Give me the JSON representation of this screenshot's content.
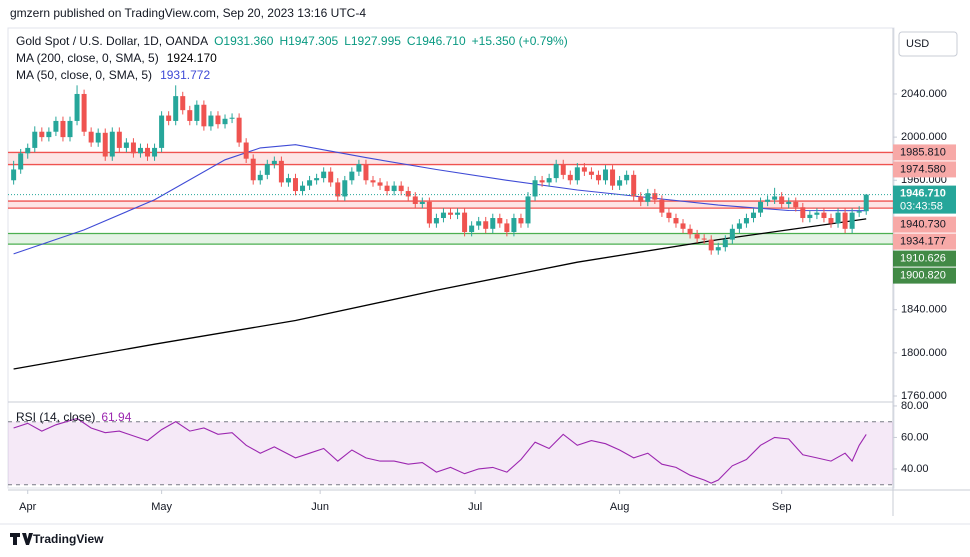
{
  "header": {
    "publisher": "gmzern published on TradingView.com, Sep 20, 2023 13:16 UTC-4"
  },
  "legend": {
    "symbol": "Gold Spot / U.S. Dollar, 1D, OANDA",
    "ohlc": [
      "O1931.360",
      "H1947.305",
      "L1927.995",
      "C1946.710"
    ],
    "change": "+15.350 (+0.79%)",
    "ma200": {
      "name": "MA (200, close, 0, SMA, 5)",
      "value": "1924.170"
    },
    "ma50": {
      "name": "MA (50, close, 0, SMA, 5)",
      "value": "1931.772"
    },
    "rsi": {
      "name": "RSI (14, close)",
      "value": "61.94"
    }
  },
  "currency": "USD",
  "footer": "TradingView",
  "chart_data": {
    "type": "candlestick",
    "up_color": "#26a69a",
    "down_color": "#ef5350",
    "xlim": [
      -0.8,
      124.8
    ],
    "xticks": [
      {
        "value": 2,
        "label": "Apr"
      },
      {
        "value": 21,
        "label": "May"
      },
      {
        "value": 43.5,
        "label": "Jun"
      },
      {
        "value": 65.5,
        "label": "Jul"
      },
      {
        "value": 86,
        "label": "Aug"
      },
      {
        "value": 109,
        "label": "Sep"
      }
    ],
    "ylim": [
      1756.3,
      2099.3
    ],
    "yticks": [
      {
        "value": 2040,
        "label": "2040.000"
      },
      {
        "value": 2000,
        "label": "2000.000"
      },
      {
        "value": 1960,
        "label": "1960.000"
      },
      {
        "value": 1840,
        "label": "1840.000"
      },
      {
        "value": 1800,
        "label": "1800.000"
      },
      {
        "value": 1760,
        "label": "1760.000"
      }
    ],
    "last_price": {
      "value": 1946.71,
      "label": "1946.710",
      "countdown": "03:43:58"
    },
    "levels": [
      {
        "value": 1985.81,
        "label": "1985.810",
        "color": "#ef5350"
      },
      {
        "value": 1974.58,
        "label": "1974.580",
        "color": "#ef5350"
      },
      {
        "value": 1940.73,
        "label": "1940.730",
        "color": "#ef5350"
      },
      {
        "value": 1934.177,
        "label": "1934.177",
        "color": "#ef5350"
      },
      {
        "value": 1910.626,
        "label": "1910.626",
        "color": "#4caf50"
      },
      {
        "value": 1900.82,
        "label": "1900.820",
        "color": "#4caf50"
      }
    ],
    "candles": [
      [
        1960,
        1978,
        1956,
        1970
      ],
      [
        1970,
        1989,
        1966,
        1985
      ],
      [
        1985,
        1994,
        1980,
        1990
      ],
      [
        1990,
        2010,
        1986,
        2005
      ],
      [
        2005,
        2009,
        1996,
        2000
      ],
      [
        2000,
        2009,
        1996,
        2005
      ],
      [
        2005,
        2019,
        2001,
        2015
      ],
      [
        2015,
        2019,
        1996,
        2000
      ],
      [
        2000,
        2019,
        1996,
        2015
      ],
      [
        2015,
        2048,
        2011,
        2040
      ],
      [
        2040,
        2044,
        2001,
        2005
      ],
      [
        2005,
        2009,
        1991,
        1995
      ],
      [
        1995,
        2008,
        1991,
        2004
      ],
      [
        2004,
        2008,
        1978,
        1982
      ],
      [
        1982,
        2009,
        1978,
        2005
      ],
      [
        2005,
        2009,
        1986,
        1990
      ],
      [
        1990,
        1999,
        1986,
        1995
      ],
      [
        1995,
        1999,
        1981,
        1985
      ],
      [
        1985,
        1994,
        1981,
        1990
      ],
      [
        1990,
        1994,
        1978,
        1982
      ],
      [
        1982,
        1994,
        1978,
        1990
      ],
      [
        1990,
        2024,
        1986,
        2020
      ],
      [
        2020,
        2024,
        2011,
        2015
      ],
      [
        2015,
        2048,
        2011,
        2038
      ],
      [
        2038,
        2042,
        2021,
        2025
      ],
      [
        2025,
        2029,
        2011,
        2015
      ],
      [
        2015,
        2034,
        2011,
        2030
      ],
      [
        2030,
        2034,
        2006,
        2010
      ],
      [
        2010,
        2024,
        2006,
        2020
      ],
      [
        2020,
        2024,
        2008,
        2012
      ],
      [
        2012,
        2021,
        2008,
        2017
      ],
      [
        2017,
        2022,
        2013,
        2018
      ],
      [
        2018,
        2022,
        1991,
        1995
      ],
      [
        1995,
        1999,
        1976,
        1980
      ],
      [
        1980,
        1984,
        1956,
        1960
      ],
      [
        1960,
        1969,
        1956,
        1965
      ],
      [
        1965,
        1979,
        1961,
        1975
      ],
      [
        1975,
        1982,
        1971,
        1978
      ],
      [
        1978,
        1982,
        1954,
        1958
      ],
      [
        1958,
        1966,
        1954,
        1962
      ],
      [
        1962,
        1966,
        1946,
        1950
      ],
      [
        1950,
        1959,
        1946,
        1955
      ],
      [
        1955,
        1964,
        1951,
        1960
      ],
      [
        1960,
        1966,
        1956,
        1962
      ],
      [
        1962,
        1972,
        1958,
        1968
      ],
      [
        1968,
        1972,
        1954,
        1958
      ],
      [
        1958,
        1962,
        1941,
        1945
      ],
      [
        1945,
        1964,
        1941,
        1960
      ],
      [
        1960,
        1972,
        1956,
        1968
      ],
      [
        1968,
        1979,
        1964,
        1975
      ],
      [
        1975,
        1979,
        1956,
        1960
      ],
      [
        1960,
        1964,
        1954,
        1958
      ],
      [
        1958,
        1962,
        1951,
        1955
      ],
      [
        1955,
        1959,
        1946,
        1950
      ],
      [
        1950,
        1959,
        1946,
        1955
      ],
      [
        1955,
        1959,
        1946,
        1950
      ],
      [
        1950,
        1954,
        1941,
        1945
      ],
      [
        1945,
        1949,
        1934,
        1938
      ],
      [
        1938,
        1944,
        1934,
        1940
      ],
      [
        1940,
        1944,
        1916,
        1920
      ],
      [
        1920,
        1929,
        1916,
        1925
      ],
      [
        1925,
        1934,
        1921,
        1930
      ],
      [
        1930,
        1934,
        1924,
        1928
      ],
      [
        1928,
        1934,
        1924,
        1930
      ],
      [
        1930,
        1934,
        1908,
        1912
      ],
      [
        1912,
        1922,
        1908,
        1918
      ],
      [
        1918,
        1926,
        1914,
        1922
      ],
      [
        1922,
        1926,
        1911,
        1915
      ],
      [
        1915,
        1929,
        1911,
        1925
      ],
      [
        1925,
        1929,
        1916,
        1920
      ],
      [
        1920,
        1924,
        1908,
        1912
      ],
      [
        1912,
        1929,
        1908,
        1925
      ],
      [
        1925,
        1929,
        1916,
        1920
      ],
      [
        1920,
        1949,
        1916,
        1945
      ],
      [
        1945,
        1964,
        1941,
        1960
      ],
      [
        1960,
        1964,
        1954,
        1958
      ],
      [
        1958,
        1966,
        1954,
        1962
      ],
      [
        1962,
        1979,
        1958,
        1975
      ],
      [
        1975,
        1979,
        1961,
        1965
      ],
      [
        1965,
        1969,
        1956,
        1960
      ],
      [
        1960,
        1976,
        1956,
        1972
      ],
      [
        1972,
        1976,
        1964,
        1968
      ],
      [
        1968,
        1972,
        1961,
        1965
      ],
      [
        1965,
        1969,
        1956,
        1960
      ],
      [
        1960,
        1974,
        1956,
        1970
      ],
      [
        1970,
        1974,
        1951,
        1955
      ],
      [
        1955,
        1964,
        1951,
        1960
      ],
      [
        1960,
        1969,
        1956,
        1965
      ],
      [
        1965,
        1969,
        1941,
        1945
      ],
      [
        1945,
        1949,
        1936,
        1940
      ],
      [
        1940,
        1952,
        1936,
        1948
      ],
      [
        1948,
        1952,
        1938,
        1942
      ],
      [
        1942,
        1946,
        1926,
        1930
      ],
      [
        1930,
        1934,
        1921,
        1925
      ],
      [
        1925,
        1929,
        1916,
        1920
      ],
      [
        1920,
        1924,
        1911,
        1915
      ],
      [
        1915,
        1919,
        1906,
        1910
      ],
      [
        1910,
        1914,
        1902,
        1906
      ],
      [
        1906,
        1910,
        1901,
        1905
      ],
      [
        1905,
        1909,
        1891,
        1895
      ],
      [
        1895,
        1902,
        1891,
        1898
      ],
      [
        1898,
        1909,
        1894,
        1905
      ],
      [
        1905,
        1919,
        1901,
        1915
      ],
      [
        1915,
        1924,
        1911,
        1920
      ],
      [
        1920,
        1929,
        1916,
        1925
      ],
      [
        1925,
        1934,
        1921,
        1930
      ],
      [
        1930,
        1944,
        1926,
        1940
      ],
      [
        1940,
        1946,
        1936,
        1942
      ],
      [
        1942,
        1953,
        1938,
        1945
      ],
      [
        1945,
        1949,
        1934,
        1938
      ],
      [
        1938,
        1944,
        1934,
        1940
      ],
      [
        1940,
        1944,
        1931,
        1935
      ],
      [
        1935,
        1939,
        1921,
        1925
      ],
      [
        1925,
        1932,
        1921,
        1928
      ],
      [
        1928,
        1934,
        1924,
        1930
      ],
      [
        1930,
        1934,
        1921,
        1925
      ],
      [
        1925,
        1929,
        1916,
        1920
      ],
      [
        1920,
        1934,
        1916,
        1930
      ],
      [
        1930,
        1934,
        1911,
        1915
      ],
      [
        1915,
        1934,
        1911,
        1930
      ],
      [
        1930,
        1936,
        1926,
        1931.36
      ],
      [
        1931.36,
        1947.305,
        1927.995,
        1946.71
      ]
    ],
    "ma200": {
      "color": "#000000",
      "x": [
        0,
        20,
        40,
        60,
        80,
        100,
        121
      ],
      "values": [
        1785,
        1808,
        1830,
        1858,
        1884,
        1905,
        1924.17
      ]
    },
    "ma50": {
      "color": "#3f4bd6",
      "x": [
        0,
        10,
        20,
        30,
        35,
        40,
        50,
        60,
        70,
        80,
        90,
        100,
        110,
        121
      ],
      "values": [
        1891.7,
        1914,
        1942,
        1979,
        1990,
        1993,
        1981,
        1970,
        1960,
        1951,
        1944,
        1937,
        1932,
        1931.772
      ]
    },
    "rsi": {
      "color": "#9c27b0",
      "ylim": [
        27.9,
        82.5
      ],
      "band": [
        30,
        70
      ],
      "yticks": [
        {
          "value": 80,
          "label": "80.00"
        },
        {
          "value": 60,
          "label": "60.00"
        },
        {
          "value": 40,
          "label": "40.00"
        }
      ],
      "x": [
        0,
        2,
        4,
        6,
        9,
        11,
        13,
        15,
        17,
        19,
        21,
        23,
        25,
        27,
        29,
        31,
        33,
        35,
        37,
        40,
        42,
        44,
        46,
        48,
        50,
        52,
        54,
        56,
        58,
        60,
        62,
        64,
        66,
        68,
        70,
        72,
        74,
        76,
        78,
        80,
        82,
        84,
        86,
        88,
        90,
        92,
        94,
        96,
        98,
        99,
        100,
        102,
        104,
        106,
        108,
        110,
        112,
        114,
        116,
        118,
        119,
        120,
        121
      ],
      "values": [
        66,
        69,
        64,
        68,
        72,
        66,
        63,
        64,
        61,
        58,
        65,
        70,
        64,
        66,
        62,
        63,
        55,
        50,
        54,
        47,
        50,
        53,
        45,
        52,
        47,
        45,
        45,
        43,
        44,
        38,
        41,
        37,
        40,
        41,
        38,
        46,
        57,
        53,
        62,
        55,
        58,
        56,
        52,
        47,
        50,
        43,
        41,
        36,
        33,
        31,
        33,
        42,
        46,
        55,
        60,
        59,
        49,
        47,
        45,
        50,
        45,
        55,
        61.94
      ]
    }
  }
}
